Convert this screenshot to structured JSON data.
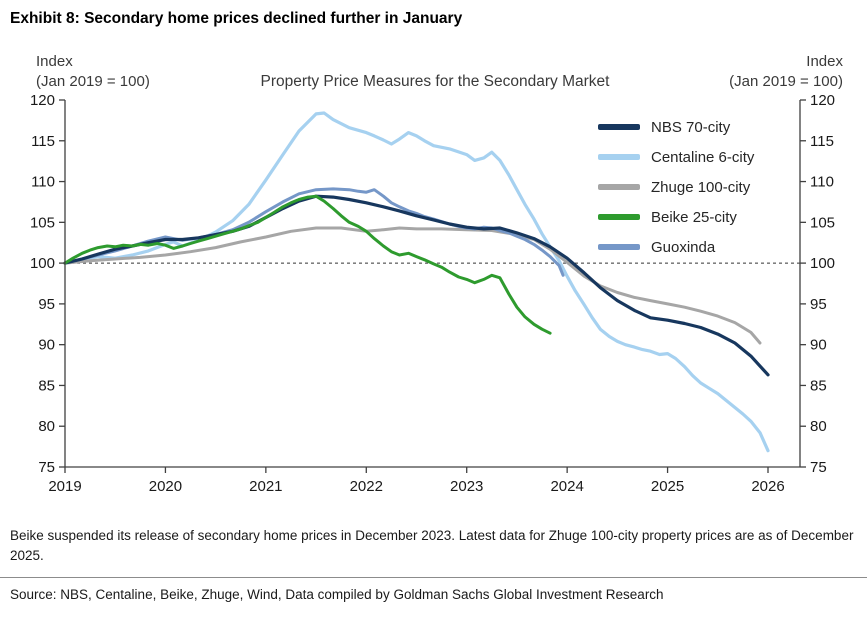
{
  "title": "Exhibit 8: Secondary home prices declined further in January",
  "footnote": "Beike suspended its release of secondary home prices in December 2023. Latest data for Zhuge 100-city property prices are as of December 2025.",
  "source": "Source: NBS, Centaline, Beike, Zhuge, Wind, Data compiled by Goldman Sachs Global Investment Research",
  "chart_data": {
    "type": "line",
    "title": "Property Price Measures for the Secondary Market",
    "y_axis_label_line1": "Index",
    "y_axis_label_line2": "(Jan 2019 = 100)",
    "xlabel": "",
    "ylabel": "Index (Jan 2019 = 100)",
    "xlim": [
      2019,
      2026
    ],
    "ylim": [
      75,
      120
    ],
    "x_ticks": [
      2019,
      2020,
      2021,
      2022,
      2023,
      2024,
      2025,
      2026
    ],
    "y_ticks": [
      75,
      80,
      85,
      90,
      95,
      100,
      105,
      110,
      115,
      120
    ],
    "baseline": 100,
    "grid": false,
    "legend_position": "top-right-inside",
    "draw_order": [
      1,
      2,
      4,
      0,
      3
    ],
    "axis_color": "#404040",
    "baseline_color": "#333333",
    "series": [
      {
        "id": "nbs-70-city",
        "name": "NBS 70-city",
        "color": "#17375e",
        "width": 3.2,
        "points": [
          [
            2019.0,
            100
          ],
          [
            2019.17,
            100.5
          ],
          [
            2019.33,
            101.1
          ],
          [
            2019.5,
            101.7
          ],
          [
            2019.67,
            102.1
          ],
          [
            2019.83,
            102.5
          ],
          [
            2020.0,
            102.9
          ],
          [
            2020.17,
            102.9
          ],
          [
            2020.33,
            103.1
          ],
          [
            2020.5,
            103.5
          ],
          [
            2020.67,
            103.9
          ],
          [
            2020.83,
            104.5
          ],
          [
            2021.0,
            105.6
          ],
          [
            2021.17,
            106.7
          ],
          [
            2021.33,
            107.6
          ],
          [
            2021.5,
            108.2
          ],
          [
            2021.67,
            108.1
          ],
          [
            2021.83,
            107.8
          ],
          [
            2022.0,
            107.4
          ],
          [
            2022.17,
            106.9
          ],
          [
            2022.33,
            106.4
          ],
          [
            2022.5,
            105.8
          ],
          [
            2022.67,
            105.3
          ],
          [
            2022.83,
            104.8
          ],
          [
            2023.0,
            104.4
          ],
          [
            2023.17,
            104.2
          ],
          [
            2023.33,
            104.3
          ],
          [
            2023.5,
            103.7
          ],
          [
            2023.67,
            103.0
          ],
          [
            2023.83,
            102.0
          ],
          [
            2024.0,
            100.6
          ],
          [
            2024.17,
            98.8
          ],
          [
            2024.33,
            97.0
          ],
          [
            2024.5,
            95.4
          ],
          [
            2024.67,
            94.2
          ],
          [
            2024.83,
            93.3
          ],
          [
            2025.0,
            93.0
          ],
          [
            2025.17,
            92.6
          ],
          [
            2025.33,
            92.1
          ],
          [
            2025.5,
            91.3
          ],
          [
            2025.67,
            90.2
          ],
          [
            2025.83,
            88.6
          ],
          [
            2026.0,
            86.3
          ]
        ]
      },
      {
        "id": "centaline-6-city",
        "name": "Centaline 6-city",
        "color": "#a6d1f0",
        "width": 3.2,
        "points": [
          [
            2019.0,
            100
          ],
          [
            2019.17,
            100.4
          ],
          [
            2019.33,
            100.8
          ],
          [
            2019.5,
            100.6
          ],
          [
            2019.67,
            101.0
          ],
          [
            2019.83,
            101.5
          ],
          [
            2020.0,
            102.3
          ],
          [
            2020.08,
            102.6
          ],
          [
            2020.17,
            102.1
          ],
          [
            2020.33,
            102.8
          ],
          [
            2020.5,
            103.8
          ],
          [
            2020.67,
            105.2
          ],
          [
            2020.83,
            107.2
          ],
          [
            2021.0,
            110.2
          ],
          [
            2021.17,
            113.3
          ],
          [
            2021.33,
            116.2
          ],
          [
            2021.5,
            118.3
          ],
          [
            2021.58,
            118.4
          ],
          [
            2021.67,
            117.6
          ],
          [
            2021.83,
            116.6
          ],
          [
            2022.0,
            116.0
          ],
          [
            2022.08,
            115.6
          ],
          [
            2022.17,
            115.1
          ],
          [
            2022.25,
            114.6
          ],
          [
            2022.33,
            115.2
          ],
          [
            2022.42,
            116.0
          ],
          [
            2022.5,
            115.6
          ],
          [
            2022.58,
            115.0
          ],
          [
            2022.67,
            114.4
          ],
          [
            2022.83,
            114.0
          ],
          [
            2023.0,
            113.3
          ],
          [
            2023.08,
            112.6
          ],
          [
            2023.17,
            112.9
          ],
          [
            2023.25,
            113.6
          ],
          [
            2023.33,
            112.6
          ],
          [
            2023.42,
            110.8
          ],
          [
            2023.5,
            109.0
          ],
          [
            2023.58,
            107.2
          ],
          [
            2023.67,
            105.4
          ],
          [
            2023.75,
            103.6
          ],
          [
            2023.83,
            102.0
          ],
          [
            2023.92,
            100.3
          ],
          [
            2024.0,
            98.4
          ],
          [
            2024.08,
            96.6
          ],
          [
            2024.17,
            94.9
          ],
          [
            2024.25,
            93.3
          ],
          [
            2024.33,
            91.9
          ],
          [
            2024.42,
            91.0
          ],
          [
            2024.5,
            90.4
          ],
          [
            2024.58,
            90.0
          ],
          [
            2024.67,
            89.7
          ],
          [
            2024.75,
            89.4
          ],
          [
            2024.83,
            89.2
          ],
          [
            2024.92,
            88.8
          ],
          [
            2025.0,
            88.9
          ],
          [
            2025.08,
            88.3
          ],
          [
            2025.17,
            87.3
          ],
          [
            2025.25,
            86.2
          ],
          [
            2025.33,
            85.3
          ],
          [
            2025.42,
            84.6
          ],
          [
            2025.5,
            84.0
          ],
          [
            2025.58,
            83.2
          ],
          [
            2025.67,
            82.3
          ],
          [
            2025.75,
            81.5
          ],
          [
            2025.83,
            80.6
          ],
          [
            2025.92,
            79.2
          ],
          [
            2026.0,
            77.0
          ]
        ]
      },
      {
        "id": "zhuge-100-city",
        "name": "Zhuge 100-city",
        "color": "#a6a6a6",
        "width": 3,
        "points": [
          [
            2019.0,
            100
          ],
          [
            2019.25,
            100.3
          ],
          [
            2019.5,
            100.5
          ],
          [
            2019.75,
            100.7
          ],
          [
            2020.0,
            101.0
          ],
          [
            2020.25,
            101.4
          ],
          [
            2020.5,
            101.9
          ],
          [
            2020.75,
            102.6
          ],
          [
            2021.0,
            103.2
          ],
          [
            2021.25,
            103.9
          ],
          [
            2021.5,
            104.3
          ],
          [
            2021.75,
            104.3
          ],
          [
            2022.0,
            103.9
          ],
          [
            2022.17,
            104.1
          ],
          [
            2022.33,
            104.3
          ],
          [
            2022.5,
            104.2
          ],
          [
            2022.75,
            104.2
          ],
          [
            2023.0,
            104.1
          ],
          [
            2023.25,
            104.0
          ],
          [
            2023.5,
            103.5
          ],
          [
            2023.67,
            102.9
          ],
          [
            2023.83,
            101.7
          ],
          [
            2024.0,
            100.1
          ],
          [
            2024.17,
            98.4
          ],
          [
            2024.33,
            97.2
          ],
          [
            2024.5,
            96.4
          ],
          [
            2024.67,
            95.8
          ],
          [
            2024.83,
            95.4
          ],
          [
            2025.0,
            95.0
          ],
          [
            2025.17,
            94.6
          ],
          [
            2025.33,
            94.1
          ],
          [
            2025.5,
            93.5
          ],
          [
            2025.67,
            92.7
          ],
          [
            2025.83,
            91.5
          ],
          [
            2025.92,
            90.2
          ]
        ]
      },
      {
        "id": "beike-25-city",
        "name": "Beike 25-city",
        "color": "#2e9b2e",
        "width": 3,
        "points": [
          [
            2019.0,
            100
          ],
          [
            2019.08,
            100.6
          ],
          [
            2019.17,
            101.2
          ],
          [
            2019.25,
            101.6
          ],
          [
            2019.33,
            101.9
          ],
          [
            2019.42,
            102.1
          ],
          [
            2019.5,
            102.0
          ],
          [
            2019.58,
            102.2
          ],
          [
            2019.67,
            102.1
          ],
          [
            2019.75,
            102.3
          ],
          [
            2019.83,
            102.2
          ],
          [
            2019.92,
            102.4
          ],
          [
            2020.0,
            102.2
          ],
          [
            2020.08,
            101.8
          ],
          [
            2020.17,
            102.1
          ],
          [
            2020.25,
            102.4
          ],
          [
            2020.33,
            102.7
          ],
          [
            2020.42,
            103.0
          ],
          [
            2020.5,
            103.3
          ],
          [
            2020.58,
            103.6
          ],
          [
            2020.67,
            103.9
          ],
          [
            2020.75,
            104.2
          ],
          [
            2020.83,
            104.6
          ],
          [
            2020.92,
            105.0
          ],
          [
            2021.0,
            105.6
          ],
          [
            2021.08,
            106.2
          ],
          [
            2021.17,
            106.9
          ],
          [
            2021.25,
            107.4
          ],
          [
            2021.33,
            107.8
          ],
          [
            2021.42,
            108.1
          ],
          [
            2021.5,
            108.2
          ],
          [
            2021.58,
            107.6
          ],
          [
            2021.67,
            106.7
          ],
          [
            2021.75,
            105.8
          ],
          [
            2021.83,
            105.0
          ],
          [
            2021.92,
            104.5
          ],
          [
            2022.0,
            103.9
          ],
          [
            2022.08,
            103.0
          ],
          [
            2022.17,
            102.1
          ],
          [
            2022.25,
            101.4
          ],
          [
            2022.33,
            101.0
          ],
          [
            2022.42,
            101.2
          ],
          [
            2022.5,
            100.8
          ],
          [
            2022.58,
            100.4
          ],
          [
            2022.67,
            99.9
          ],
          [
            2022.75,
            99.5
          ],
          [
            2022.83,
            98.9
          ],
          [
            2022.92,
            98.3
          ],
          [
            2023.0,
            98.0
          ],
          [
            2023.08,
            97.6
          ],
          [
            2023.17,
            98.0
          ],
          [
            2023.25,
            98.5
          ],
          [
            2023.33,
            98.2
          ],
          [
            2023.42,
            96.2
          ],
          [
            2023.5,
            94.6
          ],
          [
            2023.58,
            93.4
          ],
          [
            2023.67,
            92.5
          ],
          [
            2023.75,
            91.9
          ],
          [
            2023.83,
            91.4
          ]
        ]
      },
      {
        "id": "guoxinda",
        "name": "Guoxinda",
        "color": "#7597c8",
        "width": 3,
        "points": [
          [
            2019.0,
            100
          ],
          [
            2019.17,
            100.5
          ],
          [
            2019.33,
            101.0
          ],
          [
            2019.5,
            101.5
          ],
          [
            2019.67,
            102.1
          ],
          [
            2019.83,
            102.7
          ],
          [
            2020.0,
            103.2
          ],
          [
            2020.08,
            103.0
          ],
          [
            2020.17,
            102.8
          ],
          [
            2020.33,
            103.1
          ],
          [
            2020.5,
            103.5
          ],
          [
            2020.67,
            104.1
          ],
          [
            2020.83,
            105.0
          ],
          [
            2021.0,
            106.3
          ],
          [
            2021.17,
            107.5
          ],
          [
            2021.33,
            108.5
          ],
          [
            2021.5,
            109.0
          ],
          [
            2021.67,
            109.1
          ],
          [
            2021.83,
            109.0
          ],
          [
            2021.92,
            108.8
          ],
          [
            2022.0,
            108.7
          ],
          [
            2022.08,
            109.0
          ],
          [
            2022.17,
            108.2
          ],
          [
            2022.25,
            107.4
          ],
          [
            2022.33,
            106.9
          ],
          [
            2022.42,
            106.4
          ],
          [
            2022.5,
            106.1
          ],
          [
            2022.58,
            105.7
          ],
          [
            2022.67,
            105.4
          ],
          [
            2022.75,
            105.1
          ],
          [
            2022.83,
            104.8
          ],
          [
            2022.92,
            104.5
          ],
          [
            2023.0,
            104.3
          ],
          [
            2023.08,
            104.2
          ],
          [
            2023.17,
            104.4
          ],
          [
            2023.25,
            104.3
          ],
          [
            2023.33,
            104.0
          ],
          [
            2023.42,
            103.7
          ],
          [
            2023.5,
            103.3
          ],
          [
            2023.58,
            102.9
          ],
          [
            2023.67,
            102.3
          ],
          [
            2023.75,
            101.6
          ],
          [
            2023.83,
            100.8
          ],
          [
            2023.92,
            99.7
          ],
          [
            2023.96,
            98.5
          ]
        ]
      }
    ]
  }
}
